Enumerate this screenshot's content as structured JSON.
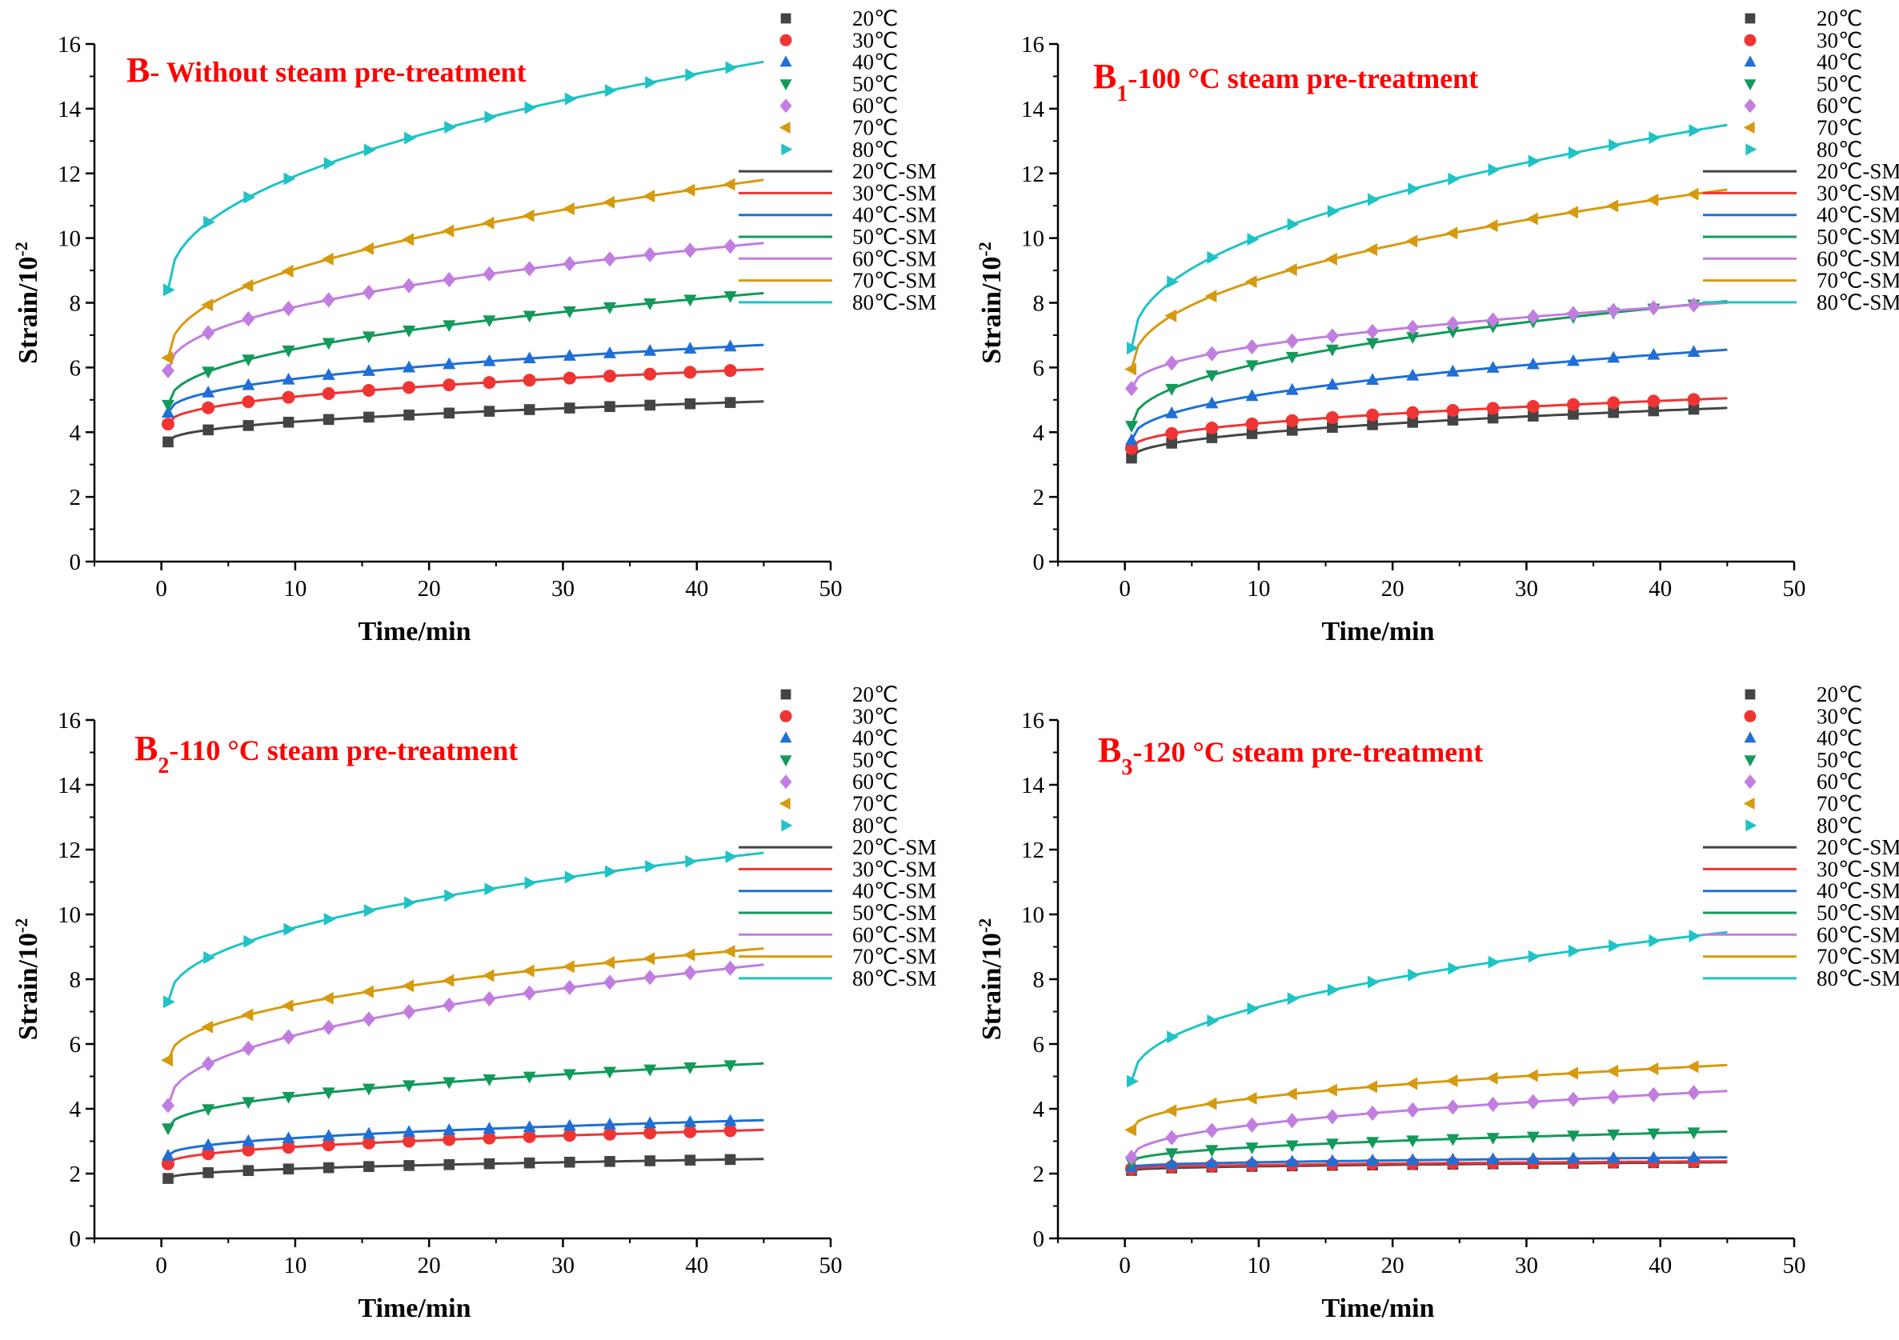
{
  "colors": {
    "s20": "#444444",
    "s30": "#f03434",
    "s40": "#1f6fd6",
    "s50": "#139a5a",
    "s60": "#c17ee0",
    "s70": "#d79a0e",
    "s80": "#1fc3c6",
    "title": "#ff0000"
  },
  "chart_data": [
    {
      "type": "line",
      "title_main": "B",
      "title_sub": "",
      "title_rest": "- Without steam pre-treatment",
      "xlabel": "Time/min",
      "ylabel": "Strain/10",
      "ylabel_exp": "-2",
      "xlim": [
        -5,
        50
      ],
      "ylim": [
        0,
        16
      ],
      "xticks": [
        "0",
        "10",
        "20",
        "30",
        "40",
        "50"
      ],
      "yticks": [
        "0",
        "2",
        "4",
        "6",
        "8",
        "10",
        "12",
        "14",
        "16"
      ],
      "legend_position": "right",
      "legend_markers": [
        "20℃",
        "30℃",
        "40℃",
        "50℃",
        "60℃",
        "70℃",
        "80℃"
      ],
      "legend_lines": [
        "20℃-SM",
        "30℃-SM",
        "40℃-SM",
        "50℃-SM",
        "60℃-SM",
        "70℃-SM",
        "80℃-SM"
      ],
      "x": [
        0.5,
        3.5,
        6.5,
        9.5,
        12.5,
        15.5,
        18.5,
        21.5,
        24.5,
        27.5,
        30.5,
        33.5,
        36.5,
        39.5,
        42.5
      ],
      "series": [
        {
          "start": 3.7,
          "end": 4.95,
          "marker": "square"
        },
        {
          "start": 4.25,
          "end": 5.95,
          "marker": "circle"
        },
        {
          "start": 4.6,
          "end": 6.7,
          "marker": "triangle-up"
        },
        {
          "start": 4.85,
          "end": 8.3,
          "marker": "triangle-down"
        },
        {
          "start": 5.9,
          "end": 9.85,
          "marker": "diamond"
        },
        {
          "start": 6.3,
          "end": 11.8,
          "marker": "triangle-left"
        },
        {
          "start": 8.4,
          "end": 15.45,
          "marker": "triangle-right"
        }
      ]
    },
    {
      "type": "line",
      "title_main": "B",
      "title_sub": "1",
      "title_rest": "-100 °C steam pre-treatment",
      "xlabel": "Time/min",
      "ylabel": "Strain/10",
      "ylabel_exp": "-2",
      "xlim": [
        -5,
        50
      ],
      "ylim": [
        0,
        16
      ],
      "xticks": [
        "0",
        "10",
        "20",
        "30",
        "40",
        "50"
      ],
      "yticks": [
        "0",
        "2",
        "4",
        "6",
        "8",
        "10",
        "12",
        "14",
        "16"
      ],
      "legend_position": "right",
      "legend_markers": [
        "20℃",
        "30℃",
        "40℃",
        "50℃",
        "60℃",
        "70℃",
        "80℃"
      ],
      "legend_lines": [
        "20℃-SM",
        "30℃-SM",
        "40℃-SM",
        "50℃-SM",
        "60℃-SM",
        "70℃-SM",
        "80℃-SM"
      ],
      "x": [
        0.5,
        3.5,
        6.5,
        9.5,
        12.5,
        15.5,
        18.5,
        21.5,
        24.5,
        27.5,
        30.5,
        33.5,
        36.5,
        39.5,
        42.5
      ],
      "series": [
        {
          "start": 3.2,
          "end": 4.75,
          "marker": "square"
        },
        {
          "start": 3.5,
          "end": 5.05,
          "marker": "circle"
        },
        {
          "start": 3.75,
          "end": 6.55,
          "marker": "triangle-up"
        },
        {
          "start": 4.2,
          "end": 8.05,
          "marker": "triangle-down"
        },
        {
          "start": 5.35,
          "end": 8.0,
          "marker": "diamond"
        },
        {
          "start": 5.95,
          "end": 11.5,
          "marker": "triangle-left"
        },
        {
          "start": 6.6,
          "end": 13.5,
          "marker": "triangle-right"
        }
      ]
    },
    {
      "type": "line",
      "title_main": "B",
      "title_sub": "2",
      "title_rest": "-110 °C steam pre-treatment",
      "xlabel": "Time/min",
      "ylabel": "Strain/10",
      "ylabel_exp": "-2",
      "xlim": [
        -5,
        50
      ],
      "ylim": [
        0,
        16
      ],
      "xticks": [
        "0",
        "10",
        "20",
        "30",
        "40",
        "50"
      ],
      "yticks": [
        "0",
        "2",
        "4",
        "6",
        "8",
        "10",
        "12",
        "14",
        "16"
      ],
      "legend_position": "right",
      "legend_markers": [
        "20℃",
        "30℃",
        "40℃",
        "50℃",
        "60℃",
        "70℃",
        "80℃"
      ],
      "legend_lines": [
        "20℃-SM",
        "30℃-SM",
        "40℃-SM",
        "50℃-SM",
        "60℃-SM",
        "70℃-SM",
        "80℃-SM"
      ],
      "x": [
        0.5,
        3.5,
        6.5,
        9.5,
        12.5,
        15.5,
        18.5,
        21.5,
        24.5,
        27.5,
        30.5,
        33.5,
        36.5,
        39.5,
        42.5
      ],
      "series": [
        {
          "start": 1.85,
          "end": 2.45,
          "marker": "square"
        },
        {
          "start": 2.3,
          "end": 3.35,
          "marker": "circle"
        },
        {
          "start": 2.55,
          "end": 3.65,
          "marker": "triangle-up"
        },
        {
          "start": 3.4,
          "end": 5.4,
          "marker": "triangle-down"
        },
        {
          "start": 4.1,
          "end": 8.45,
          "marker": "diamond"
        },
        {
          "start": 5.5,
          "end": 8.95,
          "marker": "triangle-left"
        },
        {
          "start": 7.3,
          "end": 11.9,
          "marker": "triangle-right"
        }
      ]
    },
    {
      "type": "line",
      "title_main": "B",
      "title_sub": "3",
      "title_rest": "-120 °C steam pre-treatment",
      "xlabel": "Time/min",
      "ylabel": "Strain/10",
      "ylabel_exp": "-2",
      "xlim": [
        -5,
        50
      ],
      "ylim": [
        0,
        16
      ],
      "xticks": [
        "0",
        "10",
        "20",
        "30",
        "40",
        "50"
      ],
      "yticks": [
        "0",
        "2",
        "4",
        "6",
        "8",
        "10",
        "12",
        "14",
        "16"
      ],
      "legend_position": "right",
      "legend_markers": [
        "20℃",
        "30℃",
        "40℃",
        "50℃",
        "60℃",
        "70℃",
        "80℃"
      ],
      "legend_lines": [
        "20℃-SM",
        "30℃-SM",
        "40℃-SM",
        "50℃-SM",
        "60℃-SM",
        "70℃-SM",
        "80℃-SM"
      ],
      "x": [
        0.5,
        3.5,
        6.5,
        9.5,
        12.5,
        15.5,
        18.5,
        21.5,
        24.5,
        27.5,
        30.5,
        33.5,
        36.5,
        39.5,
        42.5
      ],
      "series": [
        {
          "start": 2.1,
          "end": 2.35,
          "marker": "square"
        },
        {
          "start": 2.15,
          "end": 2.38,
          "marker": "circle"
        },
        {
          "start": 2.2,
          "end": 2.5,
          "marker": "triangle-up"
        },
        {
          "start": 2.35,
          "end": 3.3,
          "marker": "triangle-down"
        },
        {
          "start": 2.5,
          "end": 4.55,
          "marker": "diamond"
        },
        {
          "start": 3.35,
          "end": 5.35,
          "marker": "triangle-left"
        },
        {
          "start": 4.85,
          "end": 9.45,
          "marker": "triangle-right"
        }
      ]
    }
  ]
}
